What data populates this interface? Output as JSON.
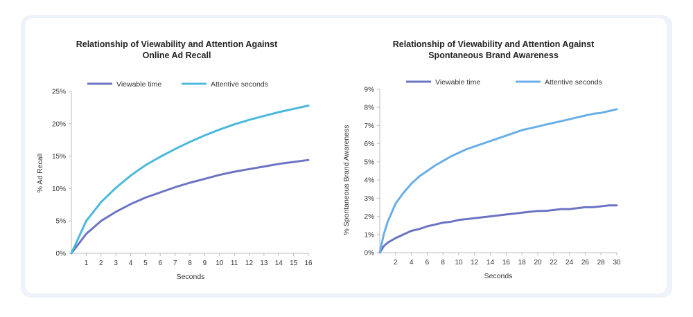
{
  "colors": {
    "viewable": "#6b74c2",
    "attentive": "#4bb8de",
    "attentive2": "#6aaee6",
    "axis": "#bbbbbb"
  },
  "chart_data": [
    {
      "type": "line",
      "title_line1": "Relationship of Viewability and Attention Against",
      "title_line2": "Online Ad Recall",
      "xlabel": "Seconds",
      "ylabel": "% Ad Recall",
      "xlim": [
        0,
        16
      ],
      "ylim": [
        0,
        25
      ],
      "x_ticks": [
        "1",
        "2",
        "3",
        "4",
        "5",
        "6",
        "7",
        "8",
        "9",
        "10",
        "11",
        "12",
        "13",
        "14",
        "15",
        "16"
      ],
      "y_ticks": [
        "0%",
        "5%",
        "10%",
        "15%",
        "20%",
        "25%"
      ],
      "legend_position": "top",
      "series": [
        {
          "name": "Viewable time",
          "x": [
            0,
            1,
            2,
            3,
            4,
            5,
            6,
            7,
            8,
            9,
            10,
            11,
            12,
            13,
            14,
            15,
            16
          ],
          "values": [
            0,
            3,
            5,
            6.4,
            7.6,
            8.6,
            9.4,
            10.2,
            10.9,
            11.5,
            12.1,
            12.6,
            13.0,
            13.4,
            13.8,
            14.1,
            14.4
          ]
        },
        {
          "name": "Attentive seconds",
          "x": [
            0,
            1,
            2,
            3,
            4,
            5,
            6,
            7,
            8,
            9,
            10,
            11,
            12,
            13,
            14,
            15,
            16
          ],
          "values": [
            0,
            5,
            7.9,
            10.1,
            12.0,
            13.6,
            14.9,
            16.1,
            17.2,
            18.2,
            19.1,
            19.9,
            20.6,
            21.2,
            21.8,
            22.3,
            22.8
          ]
        }
      ]
    },
    {
      "type": "line",
      "title_line1": "Relationship of Viewability and Attention Against",
      "title_line2": "Spontaneous Brand Awareness",
      "xlabel": "Seconds",
      "ylabel": "% Spontaneous Brand Awareness",
      "xlim": [
        0,
        30
      ],
      "ylim": [
        0,
        9
      ],
      "x_ticks": [
        "2",
        "4",
        "6",
        "8",
        "10",
        "12",
        "14",
        "16",
        "18",
        "20",
        "22",
        "24",
        "26",
        "28",
        "30"
      ],
      "y_ticks": [
        "0%",
        "1%",
        "2%",
        "3%",
        "4%",
        "5%",
        "6%",
        "7%",
        "8%",
        "9%"
      ],
      "legend_position": "top",
      "series": [
        {
          "name": "Viewable time",
          "x": [
            0,
            0.5,
            1,
            2,
            3,
            4,
            5,
            6,
            7,
            8,
            9,
            10,
            11,
            12,
            13,
            14,
            15,
            16,
            17,
            18,
            19,
            20,
            21,
            22,
            23,
            24,
            25,
            26,
            27,
            28,
            29,
            30
          ],
          "values": [
            0,
            0.35,
            0.55,
            0.8,
            1.0,
            1.2,
            1.3,
            1.45,
            1.55,
            1.65,
            1.7,
            1.8,
            1.85,
            1.9,
            1.95,
            2.0,
            2.05,
            2.1,
            2.15,
            2.2,
            2.25,
            2.3,
            2.3,
            2.35,
            2.4,
            2.4,
            2.45,
            2.5,
            2.5,
            2.55,
            2.6,
            2.6
          ]
        },
        {
          "name": "Attentive seconds",
          "x": [
            0,
            0.5,
            1,
            2,
            3,
            4,
            5,
            6,
            7,
            8,
            9,
            10,
            11,
            12,
            13,
            14,
            15,
            16,
            17,
            18,
            19,
            20,
            21,
            22,
            23,
            24,
            25,
            26,
            27,
            28,
            29,
            30
          ],
          "values": [
            0,
            1.0,
            1.7,
            2.7,
            3.3,
            3.8,
            4.2,
            4.5,
            4.8,
            5.05,
            5.3,
            5.5,
            5.7,
            5.85,
            6.0,
            6.15,
            6.3,
            6.45,
            6.6,
            6.75,
            6.85,
            6.95,
            7.05,
            7.15,
            7.25,
            7.35,
            7.45,
            7.55,
            7.65,
            7.7,
            7.8,
            7.9
          ]
        }
      ]
    }
  ]
}
